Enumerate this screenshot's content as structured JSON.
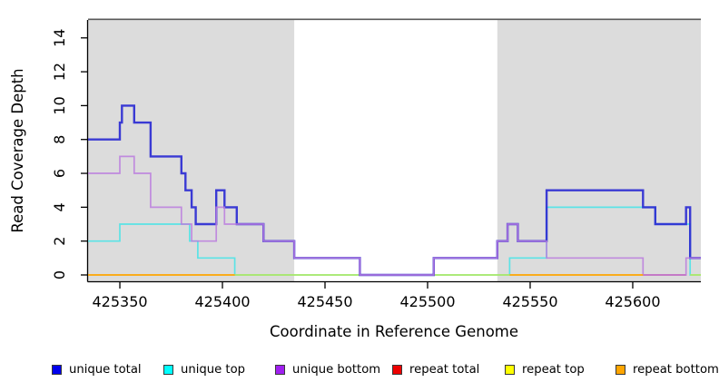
{
  "chart_data": {
    "type": "step-line",
    "title": "",
    "xlabel": "Coordinate in Reference Genome",
    "ylabel": "Read Coverage Depth",
    "xlim": [
      425334.5,
      425633.2
    ],
    "ylim": [
      0,
      15
    ],
    "xticks": [
      425350,
      425400,
      425450,
      425500,
      425550,
      425600
    ],
    "yticks": [
      0,
      2,
      4,
      6,
      8,
      10,
      12,
      14
    ],
    "grid": false,
    "legend_position": "bottom",
    "plot_background": "#ffffff",
    "shaded_regions": [
      {
        "x0": 425334.5,
        "x1": 425435,
        "color": "#dcdcdc"
      },
      {
        "x0": 425534,
        "x1": 425633.2,
        "color": "#dcdcdc"
      }
    ],
    "series": [
      {
        "name": "unique top",
        "line_color": "#53e3e6",
        "opacity": 0.95,
        "width": 1.7,
        "runs": [
          {
            "points": [
              [
                425334.5,
                2
              ],
              [
                425350,
                3
              ],
              [
                425384,
                2
              ],
              [
                425388,
                1
              ],
              [
                425406,
                0
              ],
              [
                425540,
                1
              ],
              [
                425558,
                4
              ],
              [
                425611,
                3
              ],
              [
                425628,
                0
              ]
            ],
            "end": 425633.2
          }
        ]
      },
      {
        "name": "repeat top",
        "line_color": "#eded00",
        "opacity": 0.55,
        "width": 1.8,
        "runs": [
          {
            "points": [
              [
                425406,
                0
              ]
            ],
            "end": 425540
          },
          {
            "points": [
              [
                425628,
                0
              ]
            ],
            "end": 425633.2
          }
        ]
      },
      {
        "name": "repeat total",
        "line_color": "#e03c50",
        "opacity": 0.8,
        "width": 1.8,
        "runs": [
          {
            "points": [
              [
                425605,
                0
              ]
            ],
            "end": 425626
          }
        ]
      },
      {
        "name": "unique total",
        "line_color": "#2b2bd3",
        "opacity": 0.92,
        "width": 2.4,
        "runs": [
          {
            "points": [
              [
                425334.5,
                8
              ],
              [
                425350,
                9
              ],
              [
                425351,
                10
              ],
              [
                425357,
                9
              ],
              [
                425365,
                7
              ],
              [
                425380,
                6
              ],
              [
                425382,
                5
              ],
              [
                425385,
                4
              ],
              [
                425387,
                3
              ],
              [
                425397,
                5
              ],
              [
                425401,
                4
              ],
              [
                425407,
                3
              ],
              [
                425420,
                2
              ],
              [
                425435,
                1
              ],
              [
                425467,
                0
              ],
              [
                425503,
                1
              ],
              [
                425534,
                2
              ],
              [
                425539,
                3
              ],
              [
                425544,
                2
              ],
              [
                425558,
                5
              ],
              [
                425605,
                4
              ],
              [
                425611,
                3
              ],
              [
                425626,
                4
              ],
              [
                425628,
                1
              ]
            ],
            "end": 425633.2
          }
        ]
      },
      {
        "name": "unique bottom",
        "line_color": "#bb7cde",
        "opacity": 0.85,
        "width": 1.7,
        "runs": [
          {
            "points": [
              [
                425334.5,
                6
              ],
              [
                425350,
                7
              ],
              [
                425357,
                6
              ],
              [
                425365,
                4
              ],
              [
                425380,
                3
              ],
              [
                425385,
                2
              ],
              [
                425397,
                4
              ],
              [
                425401,
                3
              ],
              [
                425420,
                2
              ],
              [
                425435,
                1
              ],
              [
                425467,
                0
              ],
              [
                425503,
                1
              ],
              [
                425534,
                2
              ],
              [
                425539,
                3
              ],
              [
                425544,
                2
              ],
              [
                425558,
                1
              ],
              [
                425605,
                0
              ],
              [
                425626,
                1
              ]
            ],
            "end": 425633.2
          }
        ]
      },
      {
        "name": "repeat bottom",
        "line_color": "#ffa500",
        "opacity": 1.0,
        "width": 1.8,
        "runs": [
          {
            "points": [
              [
                425334.5,
                0
              ]
            ],
            "end": 425406
          },
          {
            "points": [
              [
                425540,
                0
              ]
            ],
            "end": 425605
          }
        ]
      }
    ],
    "legend": [
      {
        "label": "unique total",
        "color": "#0000ee"
      },
      {
        "label": "unique top",
        "color": "#00ffff"
      },
      {
        "label": "unique bottom",
        "color": "#a020f0"
      },
      {
        "label": "repeat total",
        "color": "#ee0000"
      },
      {
        "label": "repeat top",
        "color": "#ffff00"
      },
      {
        "label": "repeat bottom",
        "color": "#ffa500"
      }
    ]
  }
}
